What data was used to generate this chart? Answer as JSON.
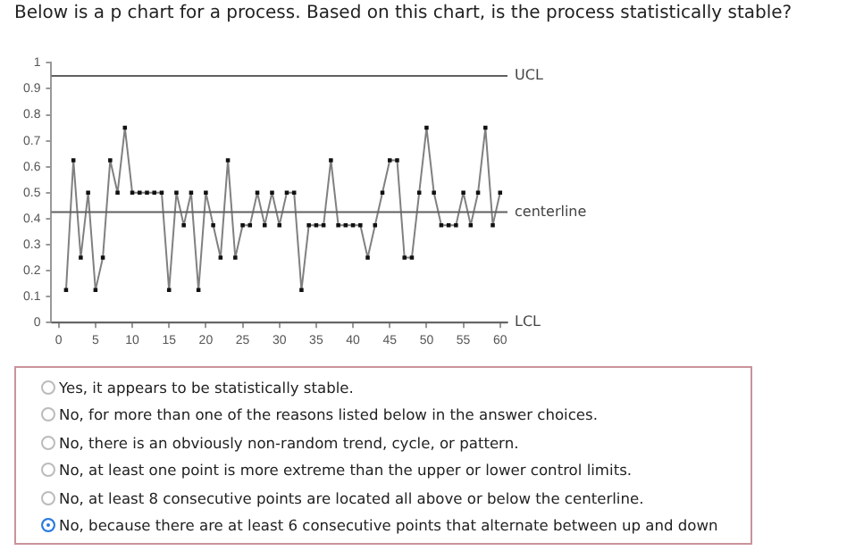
{
  "chart_data": {
    "type": "line",
    "title": "Below is a p chart for a process. Based on this chart, is the process statistically stable?",
    "x": [
      1,
      2,
      3,
      4,
      5,
      6,
      7,
      8,
      9,
      10,
      11,
      12,
      13,
      14,
      15,
      16,
      17,
      18,
      19,
      20,
      21,
      22,
      23,
      24,
      25,
      26,
      27,
      28,
      29,
      30,
      31,
      32,
      33,
      34,
      35,
      36,
      37,
      38,
      39,
      40,
      41,
      42,
      43,
      44,
      45,
      46,
      47,
      48,
      49,
      50,
      51,
      52,
      53,
      54,
      55,
      56,
      57,
      58,
      59,
      60
    ],
    "series": [
      {
        "color": "#808080",
        "values": [
          0.125,
          0.625,
          0.25,
          0.5,
          0.125,
          0.25,
          0.625,
          0.5,
          0.75,
          0.5,
          0.5,
          0.5,
          0.5,
          0.5,
          0.125,
          0.5,
          0.375,
          0.5,
          0.125,
          0.5,
          0.375,
          0.25,
          0.625,
          0.25,
          0.375,
          0.375,
          0.5,
          0.375,
          0.5,
          0.375,
          0.5,
          0.5,
          0.125,
          0.375,
          0.375,
          0.375,
          0.625,
          0.375,
          0.375,
          0.375,
          0.375,
          0.25,
          0.375,
          0.5,
          0.625,
          0.625,
          0.25,
          0.25,
          0.5,
          0.75,
          0.5,
          0.375,
          0.375,
          0.375,
          0.5,
          0.375,
          0.5,
          0.75,
          0.375,
          0.5
        ]
      }
    ],
    "xlim": [
      -1,
      61
    ],
    "xticks": [
      0,
      5,
      10,
      15,
      20,
      25,
      30,
      35,
      40,
      45,
      50,
      55,
      60
    ],
    "ylim": [
      0,
      1
    ],
    "yticks": [
      0,
      0.1,
      0.2,
      0.3,
      0.4,
      0.5,
      0.6,
      0.7,
      0.8,
      0.9,
      1
    ],
    "ref_lines": [
      {
        "axis": "y",
        "value": 0.95,
        "label": "UCL",
        "color": "#606060"
      },
      {
        "axis": "y",
        "value": 0.425,
        "label": "centerline",
        "color": "#606060"
      },
      {
        "axis": "y",
        "value": 0,
        "label": "LCL",
        "color": "#606060"
      }
    ],
    "marker": "square",
    "grid": false,
    "legend": false,
    "annotations": [
      "Yes, it appears to be statistically stable.",
      "No, for more than one of the reasons listed below in the answer choices.",
      "No, there is an obviously non-random trend, cycle, or pattern.",
      "No, at least one point is more extreme than the upper or lower control limits.",
      "No, at least 8 consecutive points are located all above or below the centerline.",
      "No, because there are at least 6 consecutive points that alternate between up and down"
    ]
  }
}
